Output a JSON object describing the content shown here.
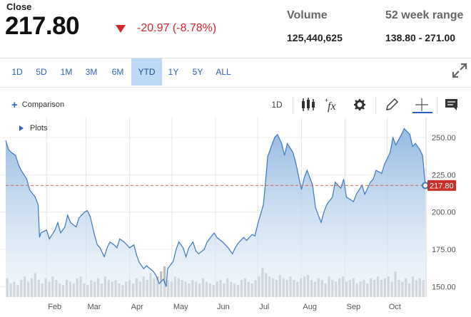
{
  "quote": {
    "close_label": "Close",
    "close_value": "217.80",
    "change": "-20.97 (-8.78%)",
    "volume_label": "Volume",
    "volume_value": "125,440,625",
    "range_label": "52 week range",
    "range_value": "138.80 - 271.00",
    "down_color": "#d4262b"
  },
  "ranges": [
    "1D",
    "5D",
    "1M",
    "3M",
    "6M",
    "YTD",
    "1Y",
    "5Y",
    "ALL"
  ],
  "active_range": "YTD",
  "toolbar": {
    "comparison_label": "Comparison",
    "interval_label": "1D",
    "plots_label": "Plots"
  },
  "chart_data": {
    "type": "area",
    "x_tick_labels": [
      "Feb",
      "Mar",
      "Apr",
      "May",
      "Jun",
      "Jul",
      "Aug",
      "Sep",
      "Oct"
    ],
    "y_tick_labels": [
      "250.00",
      "225.00",
      "200.00",
      "175.00",
      "150.00"
    ],
    "ylim": [
      143,
      261
    ],
    "current_price": 217.8,
    "current_price_label": "217.80",
    "grid": true,
    "line_color": "#3d78c0",
    "fill_color": "#a9c8e6",
    "price_tag_color": "#c9302c",
    "series_close": [
      {
        "date": "2022-01-03",
        "close": 248
      },
      {
        "date": "2022-01-05",
        "close": 242
      },
      {
        "date": "2022-01-07",
        "close": 240
      },
      {
        "date": "2022-01-10",
        "close": 238
      },
      {
        "date": "2022-01-12",
        "close": 232
      },
      {
        "date": "2022-01-14",
        "close": 228
      },
      {
        "date": "2022-01-18",
        "close": 222
      },
      {
        "date": "2022-01-20",
        "close": 215
      },
      {
        "date": "2022-01-24",
        "close": 210
      },
      {
        "date": "2022-01-26",
        "close": 205
      },
      {
        "date": "2022-01-27",
        "close": 183
      },
      {
        "date": "2022-01-28",
        "close": 186
      },
      {
        "date": "2022-02-01",
        "close": 188
      },
      {
        "date": "2022-02-03",
        "close": 182
      },
      {
        "date": "2022-02-07",
        "close": 188
      },
      {
        "date": "2022-02-09",
        "close": 193
      },
      {
        "date": "2022-02-11",
        "close": 186
      },
      {
        "date": "2022-02-14",
        "close": 190
      },
      {
        "date": "2022-02-16",
        "close": 198
      },
      {
        "date": "2022-02-18",
        "close": 193
      },
      {
        "date": "2022-02-22",
        "close": 190
      },
      {
        "date": "2022-02-24",
        "close": 196
      },
      {
        "date": "2022-02-28",
        "close": 200
      },
      {
        "date": "2022-03-02",
        "close": 201
      },
      {
        "date": "2022-03-04",
        "close": 197
      },
      {
        "date": "2022-03-07",
        "close": 185
      },
      {
        "date": "2022-03-09",
        "close": 178
      },
      {
        "date": "2022-03-11",
        "close": 176
      },
      {
        "date": "2022-03-14",
        "close": 170
      },
      {
        "date": "2022-03-16",
        "close": 176
      },
      {
        "date": "2022-03-18",
        "close": 180
      },
      {
        "date": "2022-03-21",
        "close": 178
      },
      {
        "date": "2022-03-23",
        "close": 176
      },
      {
        "date": "2022-03-25",
        "close": 182
      },
      {
        "date": "2022-03-28",
        "close": 180
      },
      {
        "date": "2022-03-30",
        "close": 178
      },
      {
        "date": "2022-04-01",
        "close": 176
      },
      {
        "date": "2022-04-04",
        "close": 178
      },
      {
        "date": "2022-04-06",
        "close": 171
      },
      {
        "date": "2022-04-08",
        "close": 166
      },
      {
        "date": "2022-04-11",
        "close": 162
      },
      {
        "date": "2022-04-13",
        "close": 164
      },
      {
        "date": "2022-04-18",
        "close": 160
      },
      {
        "date": "2022-04-20",
        "close": 157
      },
      {
        "date": "2022-04-22",
        "close": 152
      },
      {
        "date": "2022-04-25",
        "close": 155
      },
      {
        "date": "2022-04-27",
        "close": 150
      },
      {
        "date": "2022-04-28",
        "close": 162
      },
      {
        "date": "2022-05-02",
        "close": 167
      },
      {
        "date": "2022-05-04",
        "close": 175
      },
      {
        "date": "2022-05-06",
        "close": 180
      },
      {
        "date": "2022-05-09",
        "close": 176
      },
      {
        "date": "2022-05-11",
        "close": 170
      },
      {
        "date": "2022-05-13",
        "close": 176
      },
      {
        "date": "2022-05-16",
        "close": 180
      },
      {
        "date": "2022-05-18",
        "close": 174
      },
      {
        "date": "2022-05-20",
        "close": 172
      },
      {
        "date": "2022-05-24",
        "close": 175
      },
      {
        "date": "2022-05-26",
        "close": 180
      },
      {
        "date": "2022-05-31",
        "close": 186
      },
      {
        "date": "2022-06-02",
        "close": 183
      },
      {
        "date": "2022-06-06",
        "close": 180
      },
      {
        "date": "2022-06-08",
        "close": 178
      },
      {
        "date": "2022-06-10",
        "close": 176
      },
      {
        "date": "2022-06-13",
        "close": 172
      },
      {
        "date": "2022-06-15",
        "close": 176
      },
      {
        "date": "2022-06-17",
        "close": 179
      },
      {
        "date": "2022-06-21",
        "close": 183
      },
      {
        "date": "2022-06-23",
        "close": 181
      },
      {
        "date": "2022-06-27",
        "close": 185
      },
      {
        "date": "2022-06-29",
        "close": 184
      },
      {
        "date": "2022-07-01",
        "close": 192
      },
      {
        "date": "2022-07-05",
        "close": 205
      },
      {
        "date": "2022-07-07",
        "close": 225
      },
      {
        "date": "2022-07-08",
        "close": 237
      },
      {
        "date": "2022-07-11",
        "close": 245
      },
      {
        "date": "2022-07-13",
        "close": 250
      },
      {
        "date": "2022-07-15",
        "close": 252
      },
      {
        "date": "2022-07-18",
        "close": 246
      },
      {
        "date": "2022-07-20",
        "close": 238
      },
      {
        "date": "2022-07-22",
        "close": 246
      },
      {
        "date": "2022-07-26",
        "close": 240
      },
      {
        "date": "2022-07-28",
        "close": 233
      },
      {
        "date": "2022-08-01",
        "close": 215
      },
      {
        "date": "2022-08-03",
        "close": 223
      },
      {
        "date": "2022-08-05",
        "close": 228
      },
      {
        "date": "2022-08-09",
        "close": 218
      },
      {
        "date": "2022-08-11",
        "close": 203
      },
      {
        "date": "2022-08-15",
        "close": 193
      },
      {
        "date": "2022-08-17",
        "close": 200
      },
      {
        "date": "2022-08-19",
        "close": 205
      },
      {
        "date": "2022-08-23",
        "close": 210
      },
      {
        "date": "2022-08-25",
        "close": 220
      },
      {
        "date": "2022-08-29",
        "close": 216
      },
      {
        "date": "2022-08-31",
        "close": 222
      },
      {
        "date": "2022-09-02",
        "close": 210
      },
      {
        "date": "2022-09-07",
        "close": 207
      },
      {
        "date": "2022-09-09",
        "close": 212
      },
      {
        "date": "2022-09-13",
        "close": 218
      },
      {
        "date": "2022-09-15",
        "close": 212
      },
      {
        "date": "2022-09-19",
        "close": 220
      },
      {
        "date": "2022-09-21",
        "close": 222
      },
      {
        "date": "2022-09-23",
        "close": 228
      },
      {
        "date": "2022-09-27",
        "close": 226
      },
      {
        "date": "2022-09-29",
        "close": 232
      },
      {
        "date": "2022-10-03",
        "close": 240
      },
      {
        "date": "2022-10-05",
        "close": 250
      },
      {
        "date": "2022-10-07",
        "close": 245
      },
      {
        "date": "2022-10-11",
        "close": 252
      },
      {
        "date": "2022-10-13",
        "close": 256
      },
      {
        "date": "2022-10-17",
        "close": 252
      },
      {
        "date": "2022-10-19",
        "close": 244
      },
      {
        "date": "2022-10-21",
        "close": 246
      },
      {
        "date": "2022-10-24",
        "close": 242
      },
      {
        "date": "2022-10-26",
        "close": 238
      },
      {
        "date": "2022-10-28",
        "close": 217.8
      }
    ],
    "volume_relative": [
      0.55,
      0.4,
      0.45,
      0.35,
      0.5,
      0.6,
      0.45,
      0.55,
      0.7,
      0.5,
      0.4,
      0.55,
      0.45,
      0.6,
      0.5,
      0.4,
      0.35,
      0.5,
      0.45,
      0.4,
      0.55,
      0.6,
      0.4,
      0.35,
      0.5,
      0.45,
      0.55,
      0.4,
      0.6,
      0.5,
      0.45,
      0.5,
      0.4,
      0.35,
      0.45,
      0.5,
      0.4,
      0.55,
      0.45,
      0.6,
      0.5,
      0.7,
      0.55,
      0.6,
      0.75,
      0.9,
      0.5,
      0.45,
      0.6,
      0.55,
      0.5,
      0.45,
      0.4,
      0.5,
      0.45,
      0.4,
      0.55,
      0.45,
      0.4,
      0.35,
      0.45,
      0.5,
      0.4,
      0.55,
      0.45,
      0.4,
      0.35,
      0.5,
      0.55,
      0.45,
      0.4,
      0.5,
      0.6,
      0.85,
      0.7,
      0.6,
      0.55,
      0.5,
      0.65,
      0.55,
      0.5,
      0.6,
      0.5,
      0.45,
      0.55,
      0.6,
      0.65,
      0.5,
      0.45,
      0.55,
      0.5,
      0.4,
      0.6,
      0.5,
      0.45,
      0.55,
      0.6,
      0.45,
      0.5,
      0.55,
      0.4,
      0.45,
      0.5,
      0.4,
      0.55,
      0.5,
      0.6,
      0.5,
      0.55,
      0.6,
      0.45,
      0.75,
      0.5,
      0.45,
      0.55,
      0.4,
      0.6,
      0.5,
      0.55,
      0.5
    ]
  }
}
